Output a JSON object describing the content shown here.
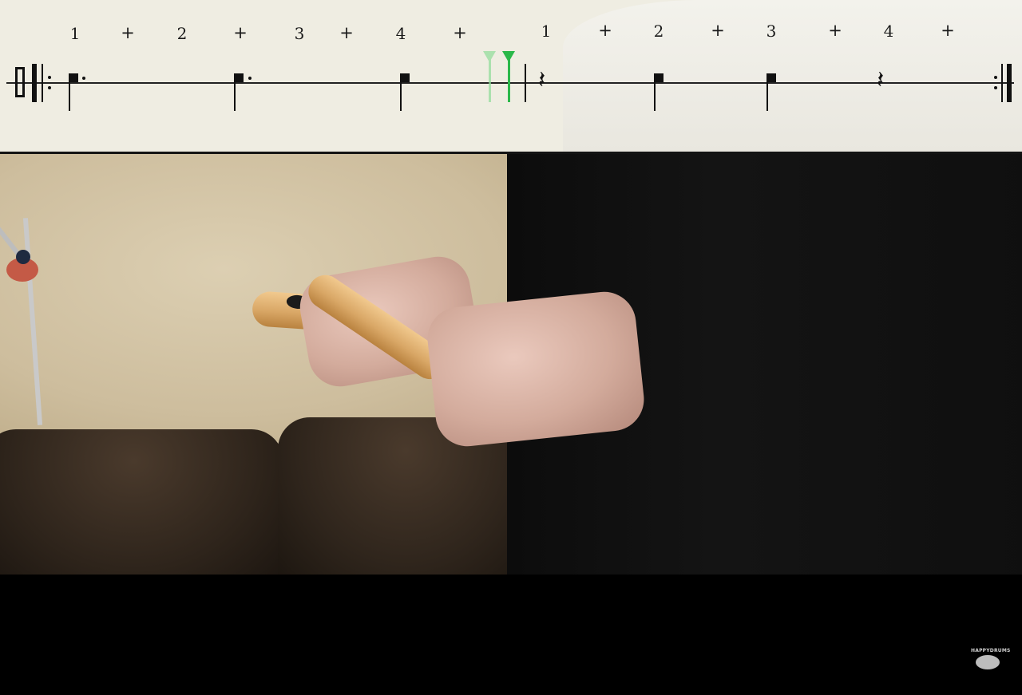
{
  "notation": {
    "counts_measure_1": [
      "1",
      "+",
      "2",
      "+",
      "3",
      "+",
      "4",
      "+"
    ],
    "counts_measure_2": [
      "1",
      "+",
      "2",
      "+",
      "3",
      "+",
      "4",
      "+"
    ],
    "rest_symbol": "𝄽",
    "cursor_colors": {
      "faded": "#7fd38b",
      "active": "#2bb84a"
    }
  },
  "watermark": {
    "logo_text": "HAPPYDRUMS",
    "icon": "drum-icon"
  }
}
